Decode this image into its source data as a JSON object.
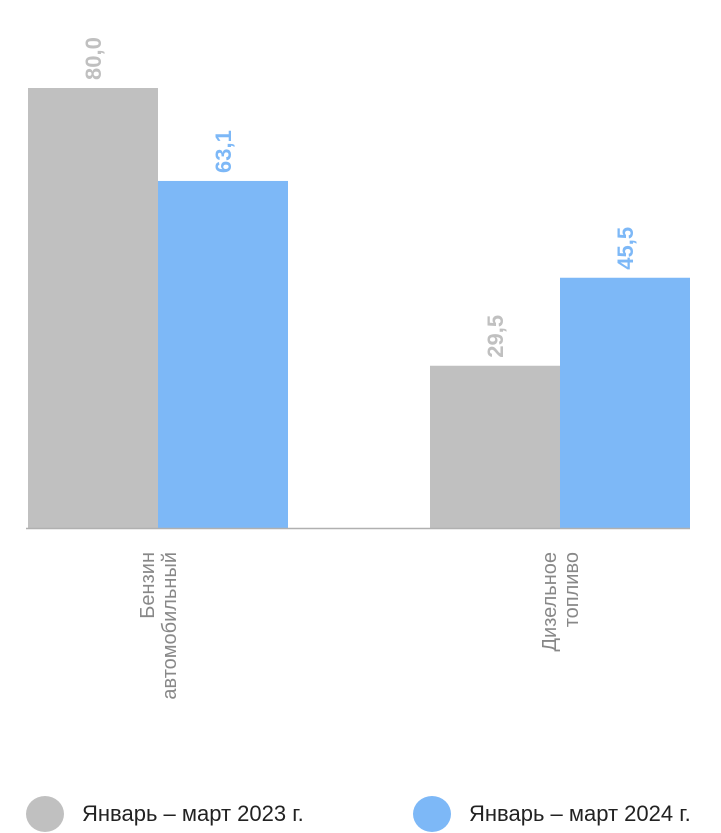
{
  "chart_data": {
    "type": "bar",
    "categories": [
      "Бензин автомобильный",
      "Дизельное топливо"
    ],
    "category_label_lines": [
      [
        "Бензин",
        "автомобильный"
      ],
      [
        "Дизельное",
        "топливо"
      ]
    ],
    "series": [
      {
        "name": "Январь – март 2023 г.",
        "values": [
          80.0,
          29.5
        ],
        "labels": [
          "80,0",
          "29,5"
        ],
        "color": "#c0c0c0"
      },
      {
        "name": "Январь – март 2024 г.",
        "values": [
          63.1,
          45.5
        ],
        "labels": [
          "63,1",
          "45,5"
        ],
        "color": "#7db8f7"
      }
    ],
    "title": "",
    "xlabel": "",
    "ylabel": "",
    "ylim": [
      0,
      80
    ],
    "grid": false,
    "legend_position": "bottom",
    "colors": {
      "axis": "#b0b0b0",
      "category_text": "#888888"
    }
  }
}
